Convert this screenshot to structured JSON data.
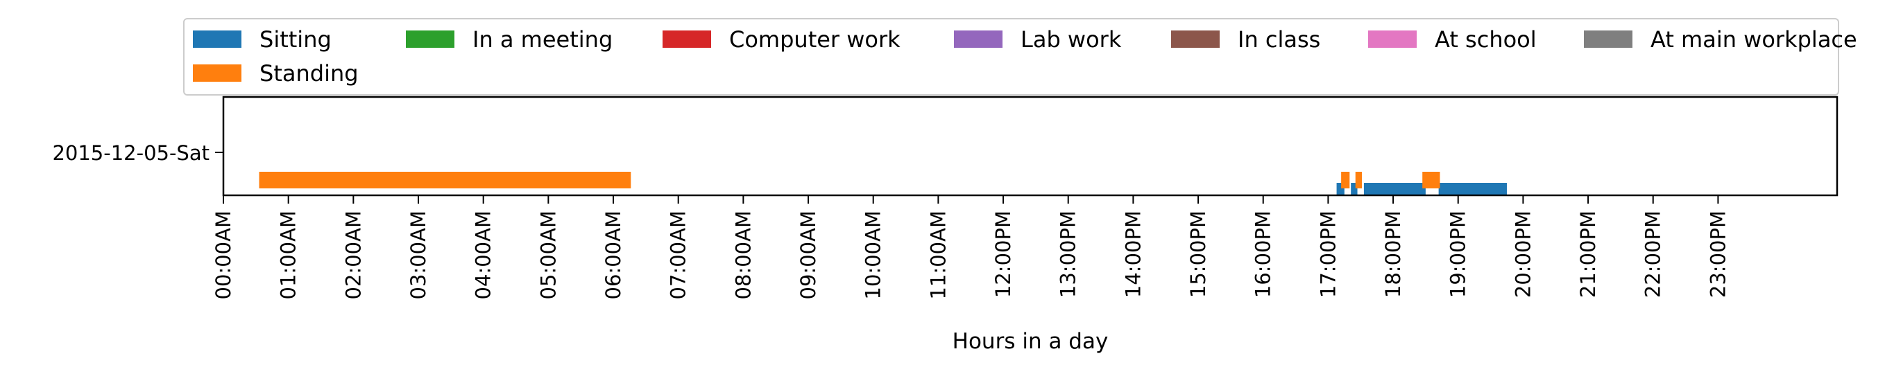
{
  "chart_data": {
    "type": "timeline",
    "title": "",
    "xlabel": "Hours in a day",
    "ylabel": "",
    "xlim": [
      0,
      24
    ],
    "x_ticks": [
      "00:00AM",
      "01:00AM",
      "02:00AM",
      "03:00AM",
      "04:00AM",
      "05:00AM",
      "06:00AM",
      "07:00AM",
      "08:00AM",
      "09:00AM",
      "10:00AM",
      "11:00AM",
      "12:00PM",
      "13:00PM",
      "14:00PM",
      "15:00PM",
      "16:00PM",
      "17:00PM",
      "18:00PM",
      "19:00PM",
      "20:00PM",
      "21:00PM",
      "22:00PM",
      "23:00PM"
    ],
    "categories": [
      "2015-12-05-Sat"
    ],
    "grid": false,
    "legend": {
      "placement": "top",
      "columns": 7,
      "entries": [
        {
          "name": "Sitting",
          "color": "#1f77b4"
        },
        {
          "name": "In a meeting",
          "color": "#2ca02c"
        },
        {
          "name": "Computer work",
          "color": "#d62728"
        },
        {
          "name": "Lab work",
          "color": "#9467bd"
        },
        {
          "name": "In class",
          "color": "#8c564b"
        },
        {
          "name": "At school",
          "color": "#e377c2"
        },
        {
          "name": "At main workplace",
          "color": "#7f7f7f"
        },
        {
          "name": "Standing",
          "color": "#ff7f0e"
        }
      ]
    },
    "series": [
      {
        "name": "Sitting",
        "color": "#1f77b4",
        "intervals": [
          [
            17.13,
            17.25
          ],
          [
            17.35,
            17.45
          ],
          [
            17.55,
            18.5
          ],
          [
            18.7,
            19.75
          ]
        ]
      },
      {
        "name": "Standing",
        "color": "#ff7f0e",
        "intervals": [
          [
            0.55,
            6.27
          ],
          [
            17.2,
            17.33
          ],
          [
            17.42,
            17.52
          ],
          [
            18.45,
            18.72
          ]
        ]
      }
    ]
  }
}
